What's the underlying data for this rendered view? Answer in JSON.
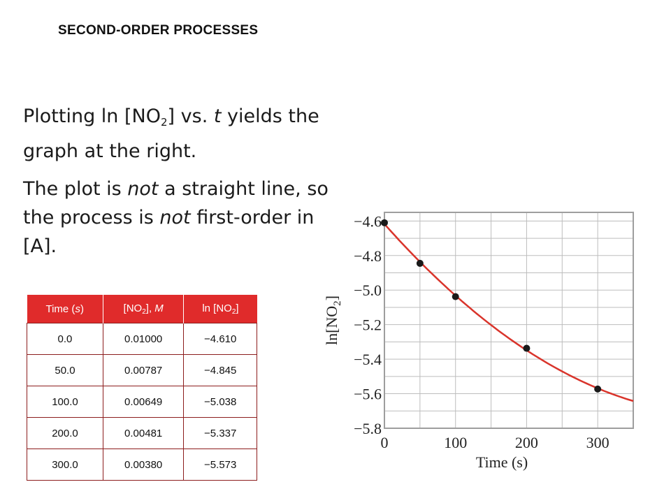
{
  "slide": {
    "title": "SECOND-ORDER PROCESSES",
    "para1": {
      "t1": "Plotting ln [NO",
      "sub": "2",
      "t2": "] vs. ",
      "t_italic": "t",
      "t3": " yields the graph at the right."
    },
    "para2": {
      "t1": "The plot is ",
      "not1": "not",
      "t2": " a straight line, so the process is ",
      "not2": "not",
      "t3": " first-order in [A]."
    }
  },
  "table": {
    "headers": [
      {
        "pre": "Time (",
        "ital": "s",
        "post": ")",
        "sub": "",
        "tail": ""
      },
      {
        "pre": "[NO",
        "ital": "",
        "post": "], ",
        "sub": "2",
        "tail": "M"
      },
      {
        "pre": "ln [NO",
        "ital": "",
        "post": "]",
        "sub": "2",
        "tail": ""
      }
    ],
    "rows": [
      [
        "0.0",
        "0.01000",
        "−4.610"
      ],
      [
        "50.0",
        "0.00787",
        "−4.845"
      ],
      [
        "100.0",
        "0.00649",
        "−5.038"
      ],
      [
        "200.0",
        "0.00481",
        "−5.337"
      ],
      [
        "300.0",
        "0.00380",
        "−5.573"
      ]
    ]
  },
  "chart_data": {
    "type": "scatter",
    "title": "",
    "xlabel": "Time (s)",
    "ylabel_main": "ln[NO",
    "ylabel_sub": "2",
    "ylabel_tail": "]",
    "xlim": [
      0,
      350
    ],
    "ylim": [
      -5.8,
      -4.55
    ],
    "x_ticks": [
      0,
      100,
      200,
      300
    ],
    "y_ticks": [
      -4.6,
      -4.8,
      -5.0,
      -5.2,
      -5.4,
      -5.6,
      -5.8
    ],
    "y_tick_labels": [
      "−4.6",
      "−4.8",
      "−5.0",
      "−5.2",
      "−5.4",
      "−5.6",
      "−5.8"
    ],
    "grid": true,
    "series": [
      {
        "x": [
          0,
          50,
          100,
          200,
          300
        ],
        "y": [
          -4.61,
          -4.845,
          -5.038,
          -5.337,
          -5.573
        ]
      }
    ],
    "colors": {
      "curve": "#d9342b",
      "point": "#1a1a1a",
      "grid": "#bdbdbd",
      "frame": "#9e9e9e"
    }
  }
}
